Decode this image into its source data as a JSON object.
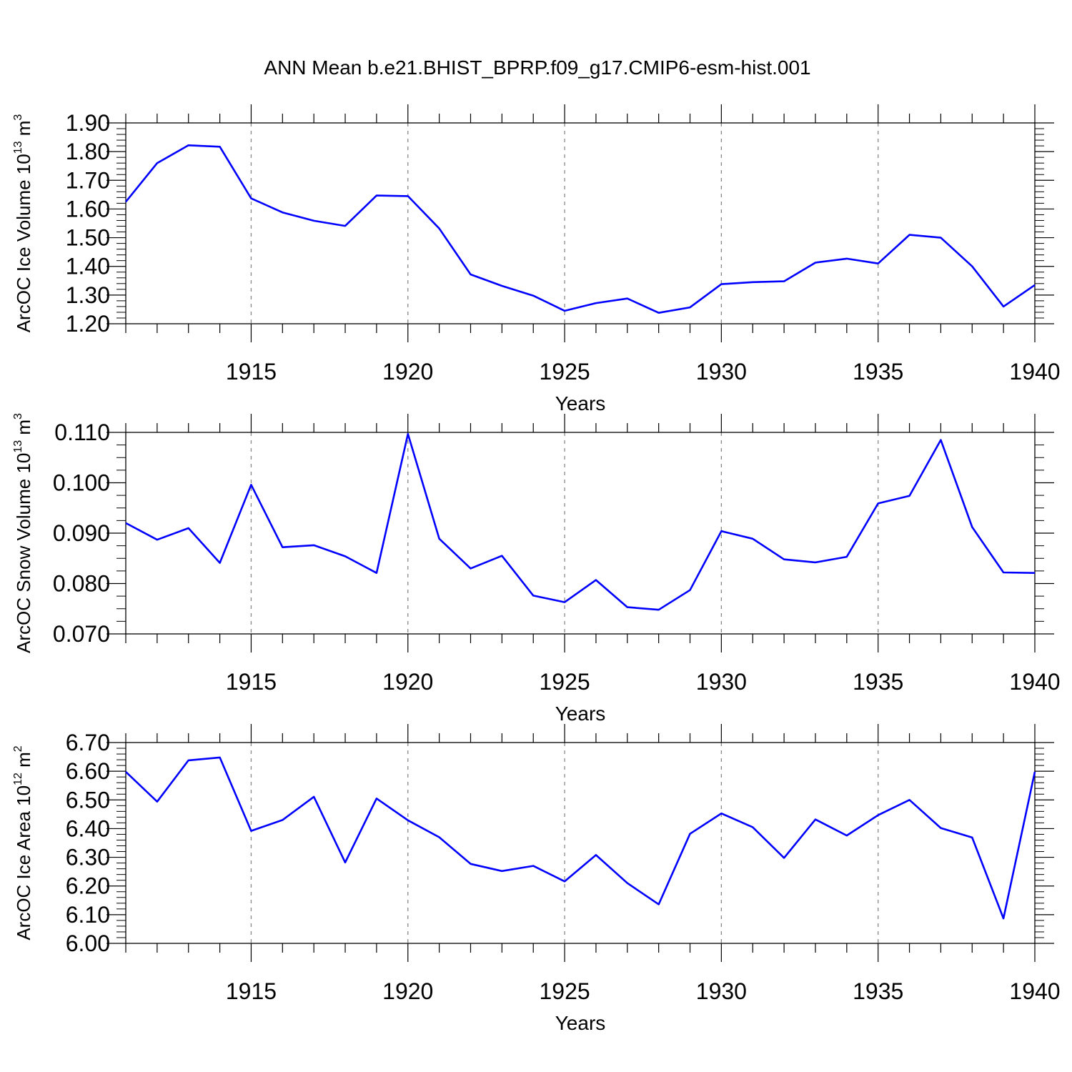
{
  "title": "ANN Mean b.e21.BHIST_BPRP.f09_g17.CMIP6-esm-hist.001",
  "line_color": "#0000ff",
  "chart_data": [
    {
      "type": "line",
      "ylabel": "ArcOC Ice Volume",
      "ylabel_unit_base": "10",
      "ylabel_unit_exp": "13",
      "ylabel_unit_m": "m",
      "ylabel_unit_m_exp": "3",
      "xlabel": "Years",
      "x": [
        1911,
        1912,
        1913,
        1914,
        1915,
        1916,
        1917,
        1918,
        1919,
        1920,
        1921,
        1922,
        1923,
        1924,
        1925,
        1926,
        1927,
        1928,
        1929,
        1930,
        1931,
        1932,
        1933,
        1934,
        1935,
        1936,
        1937,
        1938,
        1939,
        1940
      ],
      "values": [
        1.625,
        1.76,
        1.822,
        1.817,
        1.637,
        1.588,
        1.559,
        1.541,
        1.647,
        1.645,
        1.532,
        1.372,
        1.332,
        1.298,
        1.245,
        1.272,
        1.288,
        1.238,
        1.257,
        1.338,
        1.345,
        1.348,
        1.413,
        1.427,
        1.41,
        1.51,
        1.5,
        1.4,
        1.26,
        1.335
      ],
      "ylim": [
        1.2,
        1.9
      ],
      "yticks": [
        "1.20",
        "1.30",
        "1.40",
        "1.50",
        "1.60",
        "1.70",
        "1.80",
        "1.90"
      ],
      "xticks": [
        "1915",
        "1920",
        "1925",
        "1930",
        "1935",
        "1940"
      ],
      "xlim": [
        1911,
        1940
      ]
    },
    {
      "type": "line",
      "ylabel": "ArcOC Snow Volume",
      "ylabel_unit_base": "10",
      "ylabel_unit_exp": "13",
      "ylabel_unit_m": "m",
      "ylabel_unit_m_exp": "3",
      "xlabel": "Years",
      "x": [
        1911,
        1912,
        1913,
        1914,
        1915,
        1916,
        1917,
        1918,
        1919,
        1920,
        1921,
        1922,
        1923,
        1924,
        1925,
        1926,
        1927,
        1928,
        1929,
        1930,
        1931,
        1932,
        1933,
        1934,
        1935,
        1936,
        1937,
        1938,
        1939,
        1940
      ],
      "values": [
        0.092,
        0.0887,
        0.091,
        0.0841,
        0.0996,
        0.0872,
        0.0876,
        0.0854,
        0.0821,
        0.1097,
        0.0889,
        0.083,
        0.0855,
        0.0776,
        0.0763,
        0.0807,
        0.0753,
        0.0748,
        0.0787,
        0.0904,
        0.0889,
        0.0848,
        0.0842,
        0.0853,
        0.0959,
        0.0974,
        0.1085,
        0.0912,
        0.0822,
        0.0821
      ],
      "ylim": [
        0.07,
        0.11
      ],
      "yticks": [
        "0.070",
        "0.080",
        "0.090",
        "0.100",
        "0.110"
      ],
      "xticks": [
        "1915",
        "1920",
        "1925",
        "1930",
        "1935",
        "1940"
      ],
      "xlim": [
        1911,
        1940
      ]
    },
    {
      "type": "line",
      "ylabel": "ArcOC Ice Area",
      "ylabel_unit_base": "10",
      "ylabel_unit_exp": "12",
      "ylabel_unit_m": "m",
      "ylabel_unit_m_exp": "2",
      "xlabel": "Years",
      "x": [
        1911,
        1912,
        1913,
        1914,
        1915,
        1916,
        1917,
        1918,
        1919,
        1920,
        1921,
        1922,
        1923,
        1924,
        1925,
        1926,
        1927,
        1928,
        1929,
        1930,
        1931,
        1932,
        1933,
        1934,
        1935,
        1936,
        1937,
        1938,
        1939,
        1940
      ],
      "values": [
        6.598,
        6.494,
        6.638,
        6.648,
        6.392,
        6.43,
        6.511,
        6.282,
        6.505,
        6.429,
        6.37,
        6.277,
        6.252,
        6.27,
        6.216,
        6.308,
        6.21,
        6.136,
        6.382,
        6.453,
        6.405,
        6.298,
        6.432,
        6.376,
        6.447,
        6.5,
        6.402,
        6.369,
        6.087,
        6.598
      ],
      "ylim": [
        6.0,
        6.7
      ],
      "yticks": [
        "6.00",
        "6.10",
        "6.20",
        "6.30",
        "6.40",
        "6.50",
        "6.60",
        "6.70"
      ],
      "xticks": [
        "1915",
        "1920",
        "1925",
        "1930",
        "1935",
        "1940"
      ],
      "xlim": [
        1911,
        1940
      ]
    }
  ]
}
